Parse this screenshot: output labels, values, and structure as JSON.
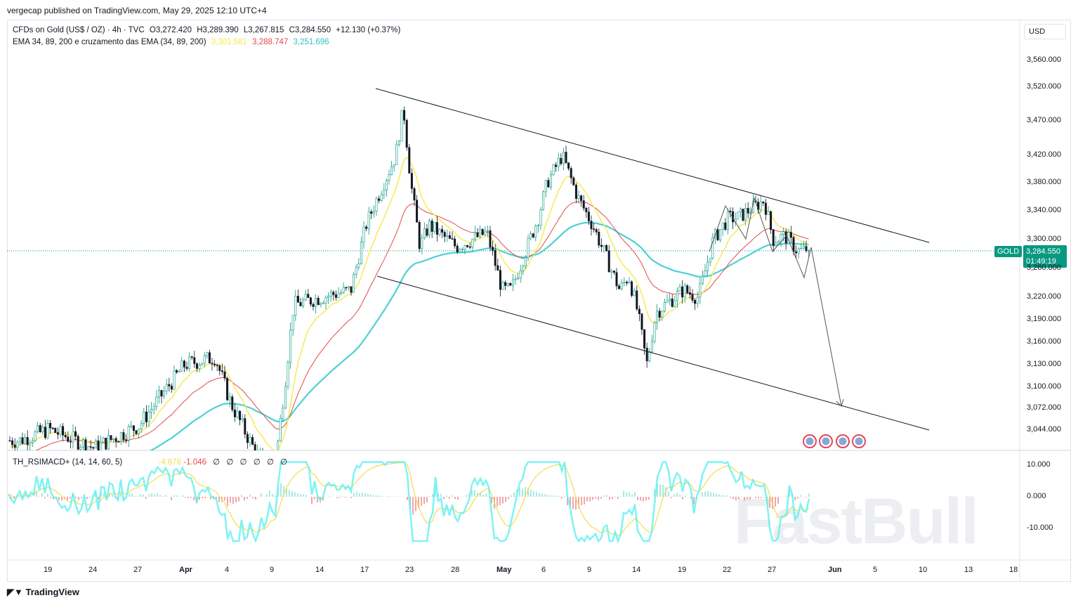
{
  "header": {
    "published": "vergecap published on TradingView.com, May 29, 2025 12:10 UTC+4"
  },
  "legend": {
    "symbol": "CFDs on Gold (US$ / OZ) · 4h · TVC",
    "open": "O3,272.420",
    "high": "H3,289.390",
    "low": "L3,267.815",
    "close": "C3,284.550",
    "change": "+12.130 (+0.37%)",
    "ema_title": "EMA 34, 89, 200 e cruzamento das EMA (34, 89, 200)",
    "ema34": "3,301.581",
    "ema89": "3,288.747",
    "ema200": "3,251.696"
  },
  "oscillator": {
    "title": "TH_RSIMACD+ (14, 14, 60, 5)",
    "v1": "-4.676",
    "v2": "-1.046",
    "rest": "∅ ∅ ∅ ∅ ∅ ∅",
    "ticks": [
      "10.000",
      "0.000",
      "-10.000"
    ]
  },
  "price_axis": {
    "currency": "USD",
    "symbol_tag": "GOLD",
    "last_price": "3,284.550",
    "countdown": "01:49:19"
  },
  "watermark": "FastBull",
  "footer": {
    "logo": "TradingView"
  },
  "colors": {
    "up": "#089981",
    "down": "#131722",
    "ema34": "#f5e94c",
    "ema89": "#e04b4b",
    "ema200": "#4dd0d6",
    "osc_fast": "#5ef0f0",
    "osc_slow": "#f5dc50"
  },
  "chart_data": {
    "type": "candlestick",
    "y_ticks": [
      "3,560.000",
      "3,520.000",
      "3,470.000",
      "3,420.000",
      "3,380.000",
      "3,340.000",
      "3,300.000",
      "3,260.000",
      "3,220.000",
      "3,190.000",
      "3,160.000",
      "3,130.000",
      "3,100.000",
      "3,072.000",
      "3,044.000"
    ],
    "x_ticks": [
      [
        "2025-03-19",
        "19"
      ],
      [
        "2025-03-24",
        "24"
      ],
      [
        "2025-03-27",
        "27"
      ],
      [
        "2025-04-01",
        "Apr"
      ],
      [
        "2025-04-04",
        "4"
      ],
      [
        "2025-04-09",
        "9"
      ],
      [
        "2025-04-14",
        "14"
      ],
      [
        "2025-04-17",
        "17"
      ],
      [
        "2025-04-23",
        "23"
      ],
      [
        "2025-04-28",
        "28"
      ],
      [
        "2025-05-01",
        "May"
      ],
      [
        "2025-05-06",
        "6"
      ],
      [
        "2025-05-09",
        "9"
      ],
      [
        "2025-05-14",
        "14"
      ],
      [
        "2025-05-19",
        "19"
      ],
      [
        "2025-05-22",
        "22"
      ],
      [
        "2025-05-27",
        "27"
      ],
      [
        "2025-06-01",
        "Jun"
      ],
      [
        "2025-06-05",
        "5"
      ],
      [
        "2025-06-10",
        "10"
      ],
      [
        "2025-06-13",
        "13"
      ],
      [
        "2025-06-18",
        "18"
      ]
    ],
    "close_path": [
      [
        "2025-03-17",
        3030
      ],
      [
        "2025-03-19",
        3045
      ],
      [
        "2025-03-24",
        3020
      ],
      [
        "2025-03-27",
        3050
      ],
      [
        "2025-04-01",
        3130
      ],
      [
        "2025-04-03",
        3140
      ],
      [
        "2025-04-04",
        3080
      ],
      [
        "2025-04-07",
        3010
      ],
      [
        "2025-04-09",
        3000
      ],
      [
        "2025-04-10",
        3100
      ],
      [
        "2025-04-11",
        3210
      ],
      [
        "2025-04-14",
        3220
      ],
      [
        "2025-04-16",
        3230
      ],
      [
        "2025-04-17",
        3320
      ],
      [
        "2025-04-21",
        3420
      ],
      [
        "2025-04-22",
        3490
      ],
      [
        "2025-04-23",
        3380
      ],
      [
        "2025-04-24",
        3290
      ],
      [
        "2025-04-25",
        3320
      ],
      [
        "2025-04-28",
        3290
      ],
      [
        "2025-04-30",
        3310
      ],
      [
        "2025-05-01",
        3230
      ],
      [
        "2025-05-02",
        3230
      ],
      [
        "2025-05-05",
        3330
      ],
      [
        "2025-05-06",
        3380
      ],
      [
        "2025-05-07",
        3420
      ],
      [
        "2025-05-08",
        3360
      ],
      [
        "2025-05-09",
        3320
      ],
      [
        "2025-05-12",
        3230
      ],
      [
        "2025-05-13",
        3250
      ],
      [
        "2025-05-14",
        3200
      ],
      [
        "2025-05-15",
        3130
      ],
      [
        "2025-05-16",
        3200
      ],
      [
        "2025-05-19",
        3230
      ],
      [
        "2025-05-20",
        3220
      ],
      [
        "2025-05-21",
        3300
      ],
      [
        "2025-05-22",
        3330
      ],
      [
        "2025-05-23",
        3330
      ],
      [
        "2025-05-26",
        3355
      ],
      [
        "2025-05-27",
        3300
      ],
      [
        "2025-05-28",
        3305
      ],
      [
        "2025-05-29",
        3284.55
      ]
    ],
    "projection_target": 3072
  }
}
